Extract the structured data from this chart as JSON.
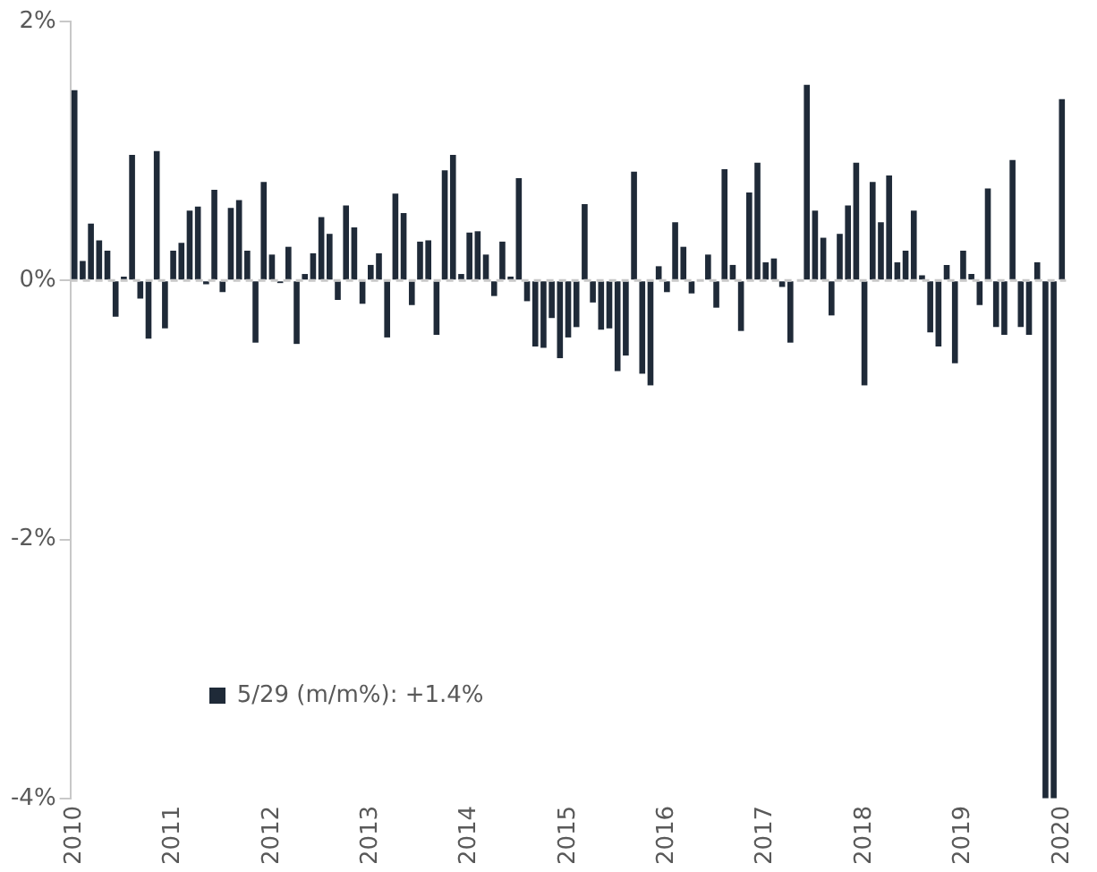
{
  "chart_data": {
    "type": "bar",
    "categories": [
      "2010",
      null,
      null,
      null,
      null,
      null,
      null,
      null,
      null,
      null,
      null,
      null,
      "2011",
      null,
      null,
      null,
      null,
      null,
      null,
      null,
      null,
      null,
      null,
      null,
      "2012",
      null,
      null,
      null,
      null,
      null,
      null,
      null,
      null,
      null,
      null,
      null,
      "2013",
      null,
      null,
      null,
      null,
      null,
      null,
      null,
      null,
      null,
      null,
      null,
      "2014",
      null,
      null,
      null,
      null,
      null,
      null,
      null,
      null,
      null,
      null,
      null,
      "2015",
      null,
      null,
      null,
      null,
      null,
      null,
      null,
      null,
      null,
      null,
      null,
      "2016",
      null,
      null,
      null,
      null,
      null,
      null,
      null,
      null,
      null,
      null,
      null,
      "2017",
      null,
      null,
      null,
      null,
      null,
      null,
      null,
      null,
      null,
      null,
      null,
      "2018",
      null,
      null,
      null,
      null,
      null,
      null,
      null,
      null,
      null,
      null,
      null,
      "2019",
      null,
      null,
      null,
      null,
      null,
      null,
      null,
      null,
      null,
      null,
      null,
      "2020"
    ],
    "series": [
      {
        "name": "5/29 (m/m%): +1.4%",
        "color": "#1f2a38",
        "values": [
          1.47,
          0.15,
          0.44,
          0.31,
          0.23,
          -0.28,
          0.03,
          0.97,
          -0.14,
          -0.45,
          1.0,
          -0.37,
          0.23,
          0.29,
          0.54,
          0.57,
          -0.03,
          0.7,
          -0.09,
          0.56,
          0.62,
          0.23,
          -0.48,
          0.76,
          0.2,
          -0.02,
          0.26,
          -0.49,
          0.05,
          0.21,
          0.49,
          0.36,
          -0.15,
          0.58,
          0.41,
          -0.18,
          0.12,
          0.21,
          -0.44,
          0.67,
          0.52,
          -0.19,
          0.3,
          0.31,
          -0.42,
          0.85,
          0.97,
          0.05,
          0.37,
          0.38,
          0.2,
          -0.12,
          0.3,
          0.03,
          0.79,
          -0.16,
          -0.51,
          -0.52,
          -0.29,
          -0.6,
          -0.44,
          -0.36,
          0.59,
          -0.17,
          -0.38,
          -0.37,
          -0.7,
          -0.58,
          0.84,
          -0.72,
          -0.81,
          0.11,
          -0.09,
          0.45,
          0.26,
          -0.1,
          null,
          0.2,
          -0.21,
          0.86,
          0.12,
          -0.39,
          0.68,
          0.91,
          0.14,
          0.17,
          -0.05,
          -0.48,
          null,
          1.51,
          0.54,
          0.33,
          -0.27,
          0.36,
          0.58,
          0.91,
          -0.81,
          0.76,
          0.45,
          0.81,
          0.14,
          0.23,
          0.54,
          0.04,
          -0.4,
          -0.51,
          0.12,
          -0.64,
          0.23,
          0.05,
          -0.19,
          0.71,
          -0.36,
          -0.42,
          0.93,
          -0.36,
          -0.42,
          0.14,
          -4,
          -4,
          1.4
        ]
      }
    ],
    "ylim": [
      -4,
      2
    ],
    "yticks": [
      {
        "value": -4,
        "label": "-4%"
      },
      {
        "value": -2,
        "label": "-2%"
      },
      {
        "value": 0,
        "label": "0%"
      },
      {
        "value": 2,
        "label": "2%"
      }
    ],
    "ref_lines": [
      {
        "axis": "y",
        "value": 0,
        "color": "#c8c8c8",
        "line_style": "dashed"
      }
    ],
    "grid": false,
    "legend": "bottom left"
  }
}
